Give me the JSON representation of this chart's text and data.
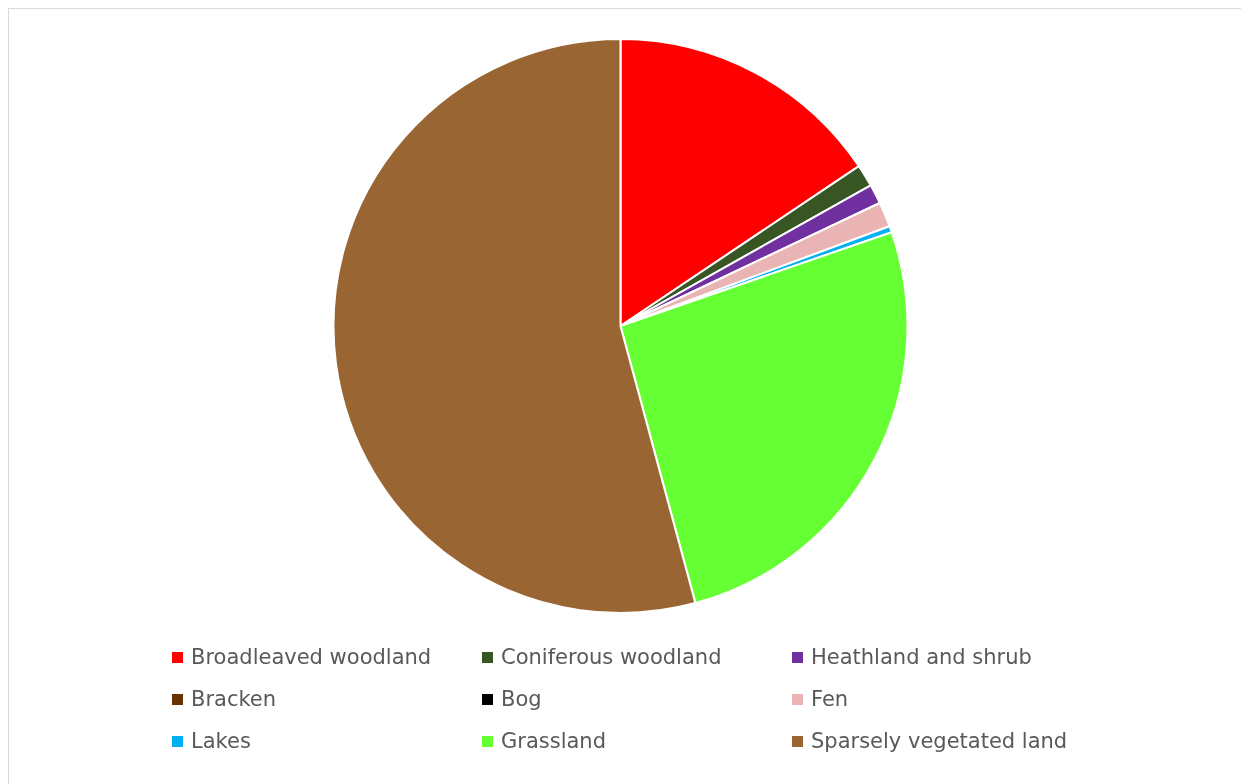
{
  "chart_data": {
    "type": "pie",
    "categories": [
      "Broadleaved woodland",
      "Coniferous woodland",
      "Heathland and shrub",
      "Bracken",
      "Bog",
      "Fen",
      "Lakes",
      "Grassland",
      "Sparsely vegetated land"
    ],
    "values": [
      15.6,
      1.25,
      1.1,
      null,
      null,
      1.4,
      0.35,
      26.1,
      54.2
    ],
    "colors": [
      "#ff0000",
      "#375623",
      "#7030a0",
      "#663300",
      "#000000",
      "#ebb4b4",
      "#00b0f0",
      "#66ff33",
      "#996633"
    ],
    "legend": "bottom"
  }
}
